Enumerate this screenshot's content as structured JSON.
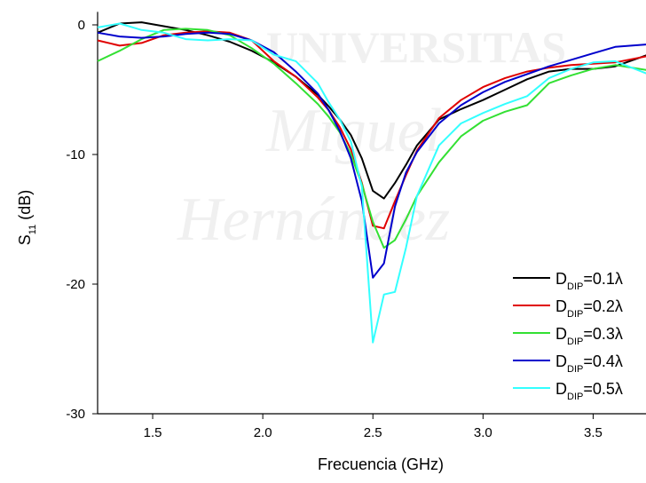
{
  "chart_data": {
    "type": "line",
    "xlabel": "Frecuencia (GHz)",
    "ylabel": "S11 (dB)",
    "watermark": [
      "UNIVERSITAS",
      "Miguel",
      "Hernández"
    ],
    "x": [
      1.25,
      1.35,
      1.45,
      1.55,
      1.65,
      1.75,
      1.85,
      1.95,
      2.05,
      2.15,
      2.25,
      2.3,
      2.35,
      2.4,
      2.45,
      2.5,
      2.55,
      2.6,
      2.65,
      2.7,
      2.8,
      2.9,
      3.0,
      3.1,
      3.2,
      3.3,
      3.4,
      3.5,
      3.6,
      3.75
    ],
    "series": [
      {
        "name": "DDIP=0.1λ",
        "color": "#000000",
        "values": [
          -0.6,
          0.1,
          0.2,
          -0.1,
          -0.4,
          -0.8,
          -1.3,
          -2.0,
          -2.9,
          -4.0,
          -5.4,
          -6.3,
          -7.3,
          -8.5,
          -10.3,
          -12.8,
          -13.4,
          -12.2,
          -10.8,
          -9.3,
          -7.3,
          -6.5,
          -5.8,
          -5.0,
          -4.2,
          -3.6,
          -3.4,
          -3.4,
          -3.2,
          -2.3
        ]
      },
      {
        "name": "DDIP=0.2λ",
        "color": "#e00000",
        "values": [
          -1.2,
          -1.6,
          -1.4,
          -0.8,
          -0.6,
          -0.5,
          -0.6,
          -1.2,
          -2.8,
          -4.0,
          -5.6,
          -6.6,
          -7.9,
          -9.6,
          -12.2,
          -15.5,
          -15.7,
          -13.6,
          -11.6,
          -9.7,
          -7.2,
          -5.8,
          -4.8,
          -4.1,
          -3.6,
          -3.3,
          -3.1,
          -3.0,
          -2.9,
          -2.4
        ]
      },
      {
        "name": "DDIP=0.3λ",
        "color": "#33e033",
        "values": [
          -2.8,
          -2.0,
          -1.1,
          -0.4,
          -0.3,
          -0.4,
          -0.8,
          -1.8,
          -3.0,
          -4.5,
          -6.1,
          -7.1,
          -8.3,
          -10.0,
          -12.3,
          -15.2,
          -17.2,
          -16.6,
          -15.0,
          -13.2,
          -10.6,
          -8.6,
          -7.4,
          -6.7,
          -6.2,
          -4.5,
          -3.9,
          -3.4,
          -3.1,
          -3.5
        ]
      },
      {
        "name": "DDIP=0.4λ",
        "color": "#0000cc",
        "values": [
          -0.6,
          -0.9,
          -1.0,
          -0.9,
          -0.7,
          -0.6,
          -0.7,
          -1.2,
          -2.1,
          -3.6,
          -5.3,
          -6.6,
          -8.2,
          -10.3,
          -13.6,
          -19.5,
          -18.4,
          -14.0,
          -11.4,
          -9.8,
          -7.6,
          -6.2,
          -5.2,
          -4.4,
          -3.8,
          -3.2,
          -2.7,
          -2.2,
          -1.7,
          -1.5
        ]
      },
      {
        "name": "DDIP=0.5λ",
        "color": "#33ffff",
        "values": [
          -0.2,
          0.1,
          -0.4,
          -0.6,
          -1.1,
          -1.2,
          -1.1,
          -1.2,
          -2.3,
          -2.8,
          -4.5,
          -6.0,
          -7.3,
          -9.0,
          -12.5,
          -24.5,
          -20.8,
          -20.6,
          -17.2,
          -13.2,
          -9.3,
          -7.6,
          -6.8,
          -6.1,
          -5.5,
          -4.1,
          -3.4,
          -2.9,
          -2.8,
          -3.8
        ]
      }
    ],
    "xlim": [
      1.25,
      3.74
    ],
    "ylim": [
      -30,
      1
    ],
    "xticks": [
      1.5,
      {
        "value": 2,
        "label": "2.0"
      },
      2.5,
      {
        "value": 3,
        "label": "3.0"
      },
      3.5
    ],
    "yticks": [
      -30,
      -20,
      -10,
      0
    ],
    "grid": false,
    "legend": "lower right"
  }
}
